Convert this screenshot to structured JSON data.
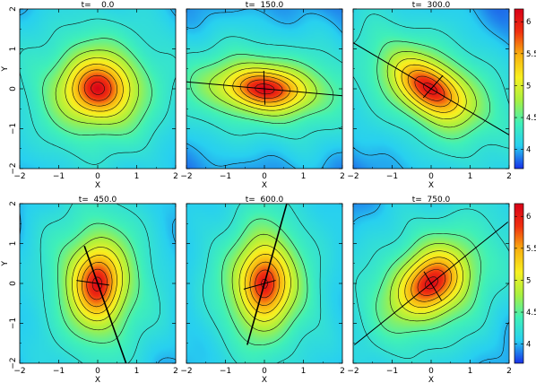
{
  "chart_data": {
    "type": "heatmap",
    "colormap": [
      "#1830e8",
      "#28d0f0",
      "#40f0b8",
      "#a8f040",
      "#f8f020",
      "#f8b010",
      "#f03010",
      "#d80018"
    ],
    "colorbar": {
      "range": [
        3.7,
        6.2
      ],
      "ticks": [
        "4",
        "4.5",
        "5",
        "5.5",
        "6"
      ],
      "tick_values": [
        4,
        4.5,
        5,
        5.5,
        6
      ]
    },
    "x_ticks": [
      "−2",
      "−1",
      "0",
      "1",
      "2"
    ],
    "y_ticks": [
      "−2",
      "−1",
      "0",
      "1",
      "2"
    ],
    "xlabel": "X",
    "ylabel": "Y",
    "xlim": [
      -2,
      2
    ],
    "ylim": [
      -2,
      2
    ],
    "contour_levels": [
      4.0,
      4.25,
      4.5,
      4.75,
      5.0,
      5.25,
      5.5,
      5.75,
      6.0
    ],
    "panels": [
      {
        "title": "t=    0.0",
        "peak": 6.2,
        "core_scale": 0.2,
        "envelope": [
          1.9,
          1.7
        ],
        "angle_deg": 0,
        "axes": []
      },
      {
        "title": "t=  150.0",
        "peak": 6.2,
        "core_scale": 0.2,
        "envelope": [
          2.5,
          1.15
        ],
        "angle_deg": -5,
        "axes": [
          {
            "angle_deg": -5,
            "length": 2.4,
            "opposite": 2.4,
            "width": 1.0
          },
          {
            "angle_deg": 92,
            "length": 0.45,
            "opposite": 0.4,
            "width": 1.0
          }
        ]
      },
      {
        "title": "t=  300.0",
        "peak": 6.2,
        "core_scale": 0.2,
        "envelope": [
          2.3,
          1.3
        ],
        "angle_deg": -32,
        "axes": [
          {
            "angle_deg": 150,
            "length": 2.5,
            "opposite": 2.5,
            "width": 1.0
          },
          {
            "angle_deg": 48,
            "length": 0.45,
            "opposite": 0.3,
            "width": 1.0
          }
        ]
      },
      {
        "title": "t=  450.0",
        "peak": 6.2,
        "core_scale": 0.2,
        "envelope": [
          1.45,
          2.1
        ],
        "angle_deg": 0,
        "axes": [
          {
            "angle_deg": -70,
            "length": 2.2,
            "opposite": 1.0,
            "width": 1.6
          },
          {
            "angle_deg": 172,
            "length": 0.55,
            "opposite": 0.3,
            "width": 1.0
          }
        ]
      },
      {
        "title": "t=  600.0",
        "peak": 6.2,
        "core_scale": 0.2,
        "envelope": [
          1.45,
          2.1
        ],
        "angle_deg": 0,
        "axes": [
          {
            "angle_deg": 74,
            "length": 2.2,
            "opposite": 1.6,
            "width": 1.6
          },
          {
            "angle_deg": -165,
            "length": 0.55,
            "opposite": 0.3,
            "width": 1.0
          }
        ]
      },
      {
        "title": "t=  750.0",
        "peak": 6.2,
        "core_scale": 0.2,
        "envelope": [
          2.1,
          1.5
        ],
        "angle_deg": 38,
        "axes": [
          {
            "angle_deg": 38,
            "length": 2.5,
            "opposite": 2.5,
            "width": 1.0
          },
          {
            "angle_deg": -58,
            "length": 0.5,
            "opposite": 0.35,
            "width": 1.0
          }
        ]
      }
    ]
  }
}
